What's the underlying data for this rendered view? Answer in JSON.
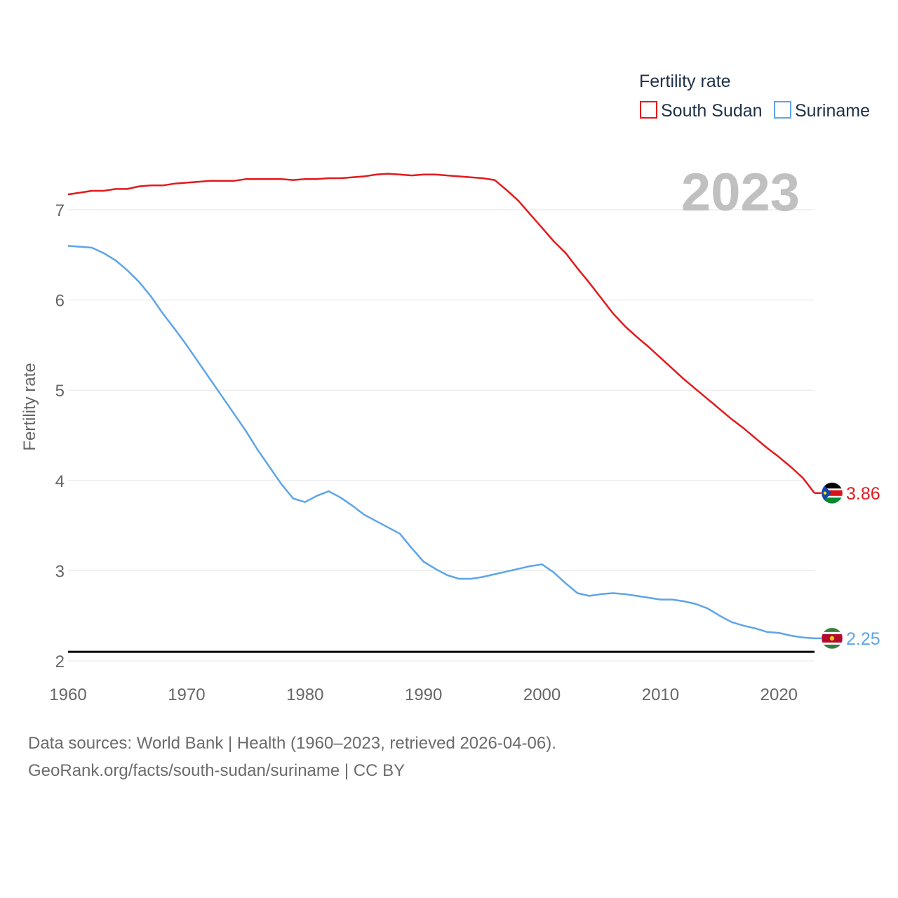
{
  "chart_data": {
    "type": "line",
    "title": "",
    "current_year": "2023",
    "legend_title": "Fertility rate",
    "ylabel": "Fertility rate",
    "xlabel": "",
    "xlim": [
      1960,
      2023
    ],
    "ylim": [
      2,
      7.5
    ],
    "x_ticks": [
      1960,
      1970,
      1980,
      1990,
      2000,
      2010,
      2020
    ],
    "y_ticks": [
      2,
      3,
      4,
      5,
      6,
      7
    ],
    "reference_line": {
      "value": 2.1,
      "color": "#000000"
    },
    "series": [
      {
        "name": "South Sudan",
        "color": "#e31a1c",
        "end_label": "3.86",
        "flag": "south-sudan-flag-icon",
        "x": [
          1960,
          1961,
          1962,
          1963,
          1964,
          1965,
          1966,
          1967,
          1968,
          1969,
          1970,
          1971,
          1972,
          1973,
          1974,
          1975,
          1976,
          1977,
          1978,
          1979,
          1980,
          1981,
          1982,
          1983,
          1984,
          1985,
          1986,
          1987,
          1988,
          1989,
          1990,
          1991,
          1992,
          1993,
          1994,
          1995,
          1996,
          1997,
          1998,
          1999,
          2000,
          2001,
          2002,
          2003,
          2004,
          2005,
          2006,
          2007,
          2008,
          2009,
          2010,
          2011,
          2012,
          2013,
          2014,
          2015,
          2016,
          2017,
          2018,
          2019,
          2020,
          2021,
          2022,
          2023
        ],
        "values": [
          7.17,
          7.19,
          7.21,
          7.21,
          7.23,
          7.23,
          7.26,
          7.27,
          7.27,
          7.29,
          7.3,
          7.31,
          7.32,
          7.32,
          7.32,
          7.34,
          7.34,
          7.34,
          7.34,
          7.33,
          7.34,
          7.34,
          7.35,
          7.35,
          7.36,
          7.37,
          7.39,
          7.4,
          7.39,
          7.38,
          7.39,
          7.39,
          7.38,
          7.37,
          7.36,
          7.35,
          7.33,
          7.22,
          7.1,
          6.95,
          6.8,
          6.65,
          6.52,
          6.35,
          6.19,
          6.02,
          5.85,
          5.71,
          5.59,
          5.48,
          5.36,
          5.24,
          5.12,
          5.01,
          4.9,
          4.79,
          4.68,
          4.58,
          4.47,
          4.36,
          4.26,
          4.15,
          4.03,
          3.86
        ]
      },
      {
        "name": "Suriname",
        "color": "#5da5e8",
        "end_label": "2.25",
        "flag": "suriname-flag-icon",
        "x": [
          1960,
          1961,
          1962,
          1963,
          1964,
          1965,
          1966,
          1967,
          1968,
          1969,
          1970,
          1971,
          1972,
          1973,
          1974,
          1975,
          1976,
          1977,
          1978,
          1979,
          1980,
          1981,
          1982,
          1983,
          1984,
          1985,
          1986,
          1987,
          1988,
          1989,
          1990,
          1991,
          1992,
          1993,
          1994,
          1995,
          1996,
          1997,
          1998,
          1999,
          2000,
          2001,
          2002,
          2003,
          2004,
          2005,
          2006,
          2007,
          2008,
          2009,
          2010,
          2011,
          2012,
          2013,
          2014,
          2015,
          2016,
          2017,
          2018,
          2019,
          2020,
          2021,
          2022,
          2023
        ],
        "values": [
          6.6,
          6.59,
          6.58,
          6.52,
          6.44,
          6.33,
          6.2,
          6.04,
          5.85,
          5.68,
          5.5,
          5.31,
          5.12,
          4.93,
          4.74,
          4.55,
          4.34,
          4.15,
          3.96,
          3.8,
          3.76,
          3.83,
          3.88,
          3.81,
          3.72,
          3.62,
          3.55,
          3.48,
          3.41,
          3.25,
          3.1,
          3.02,
          2.95,
          2.91,
          2.91,
          2.93,
          2.96,
          2.99,
          3.02,
          3.05,
          3.07,
          2.98,
          2.86,
          2.75,
          2.72,
          2.74,
          2.75,
          2.74,
          2.72,
          2.7,
          2.68,
          2.68,
          2.66,
          2.63,
          2.58,
          2.5,
          2.43,
          2.39,
          2.36,
          2.32,
          2.31,
          2.28,
          2.26,
          2.25
        ]
      }
    ]
  },
  "footer": {
    "line1": "Data sources: World Bank | Health (1960–2023, retrieved 2026-04-06).",
    "line2": "GeoRank.org/facts/south-sudan/suriname | CC BY"
  }
}
